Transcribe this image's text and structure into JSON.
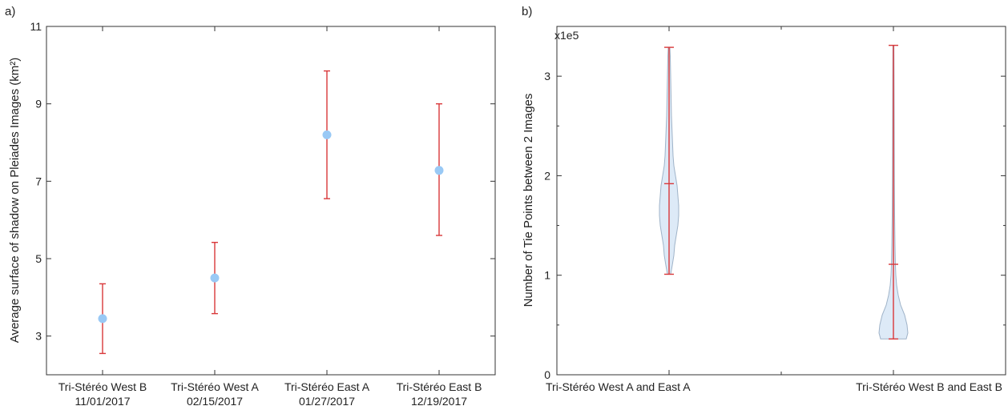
{
  "panels": {
    "a": {
      "label": "a)"
    },
    "b": {
      "label": "b)"
    }
  },
  "chart_data": [
    {
      "type": "scatter",
      "panel": "a)",
      "ylabel": "Average surface of shadow on Pleiades Images (km²)",
      "ylim": [
        2,
        11
      ],
      "yticks": [
        3,
        5,
        7,
        9,
        11
      ],
      "categories": [
        [
          "Tri-Stéréo West B",
          "11/01/2017"
        ],
        [
          "Tri-Stéréo West A",
          "02/15/2017"
        ],
        [
          "Tri-Stéréo East A",
          "01/27/2017"
        ],
        [
          "Tri-Stéréo East B",
          "12/19/2017"
        ]
      ],
      "points": [
        {
          "mean": 3.45,
          "low": 2.55,
          "high": 4.35
        },
        {
          "mean": 4.5,
          "low": 3.58,
          "high": 5.42
        },
        {
          "mean": 8.2,
          "low": 6.55,
          "high": 9.85
        },
        {
          "mean": 7.28,
          "low": 5.6,
          "high": 9.0
        }
      ],
      "colors": {
        "marker": "#99c9f5",
        "errorbar": "#d9383a"
      },
      "grid": false
    },
    {
      "type": "violin",
      "panel": "b)",
      "ylabel": "Number of Tie Points between 2 Images",
      "multiplier_label": "x1e5",
      "ylim": [
        0,
        3.5
      ],
      "yticks": [
        0,
        1,
        2,
        3
      ],
      "categories": [
        "Tri-Stéréo West A and East A",
        "Tri-Stéréo West B and East B"
      ],
      "violins": [
        {
          "min": 1.01,
          "max": 3.29,
          "median": 1.92,
          "density": [
            [
              1.01,
              2
            ],
            [
              1.1,
              4
            ],
            [
              1.2,
              6
            ],
            [
              1.3,
              7
            ],
            [
              1.4,
              9
            ],
            [
              1.5,
              11
            ],
            [
              1.6,
              12
            ],
            [
              1.7,
              12
            ],
            [
              1.8,
              11
            ],
            [
              1.9,
              10
            ],
            [
              2.0,
              8
            ],
            [
              2.1,
              6
            ],
            [
              2.2,
              5
            ],
            [
              2.4,
              4
            ],
            [
              2.6,
              3
            ],
            [
              2.8,
              2.5
            ],
            [
              3.0,
              2
            ],
            [
              3.2,
              1.5
            ],
            [
              3.29,
              1
            ]
          ]
        },
        {
          "min": 0.36,
          "max": 3.31,
          "median": 1.11,
          "density": [
            [
              0.36,
              16
            ],
            [
              0.42,
              18
            ],
            [
              0.5,
              17
            ],
            [
              0.6,
              14
            ],
            [
              0.7,
              9
            ],
            [
              0.8,
              6
            ],
            [
              0.9,
              4
            ],
            [
              1.0,
              3
            ],
            [
              1.1,
              2.5
            ],
            [
              1.3,
              2
            ],
            [
              1.6,
              1.5
            ],
            [
              2.0,
              1.2
            ],
            [
              2.5,
              1
            ],
            [
              3.0,
              0.8
            ],
            [
              3.31,
              0.6
            ]
          ]
        }
      ],
      "colors": {
        "fill": "#ddeaf7",
        "outline": "#9fb3c8",
        "stat": "#d9383a"
      },
      "grid": false
    }
  ]
}
